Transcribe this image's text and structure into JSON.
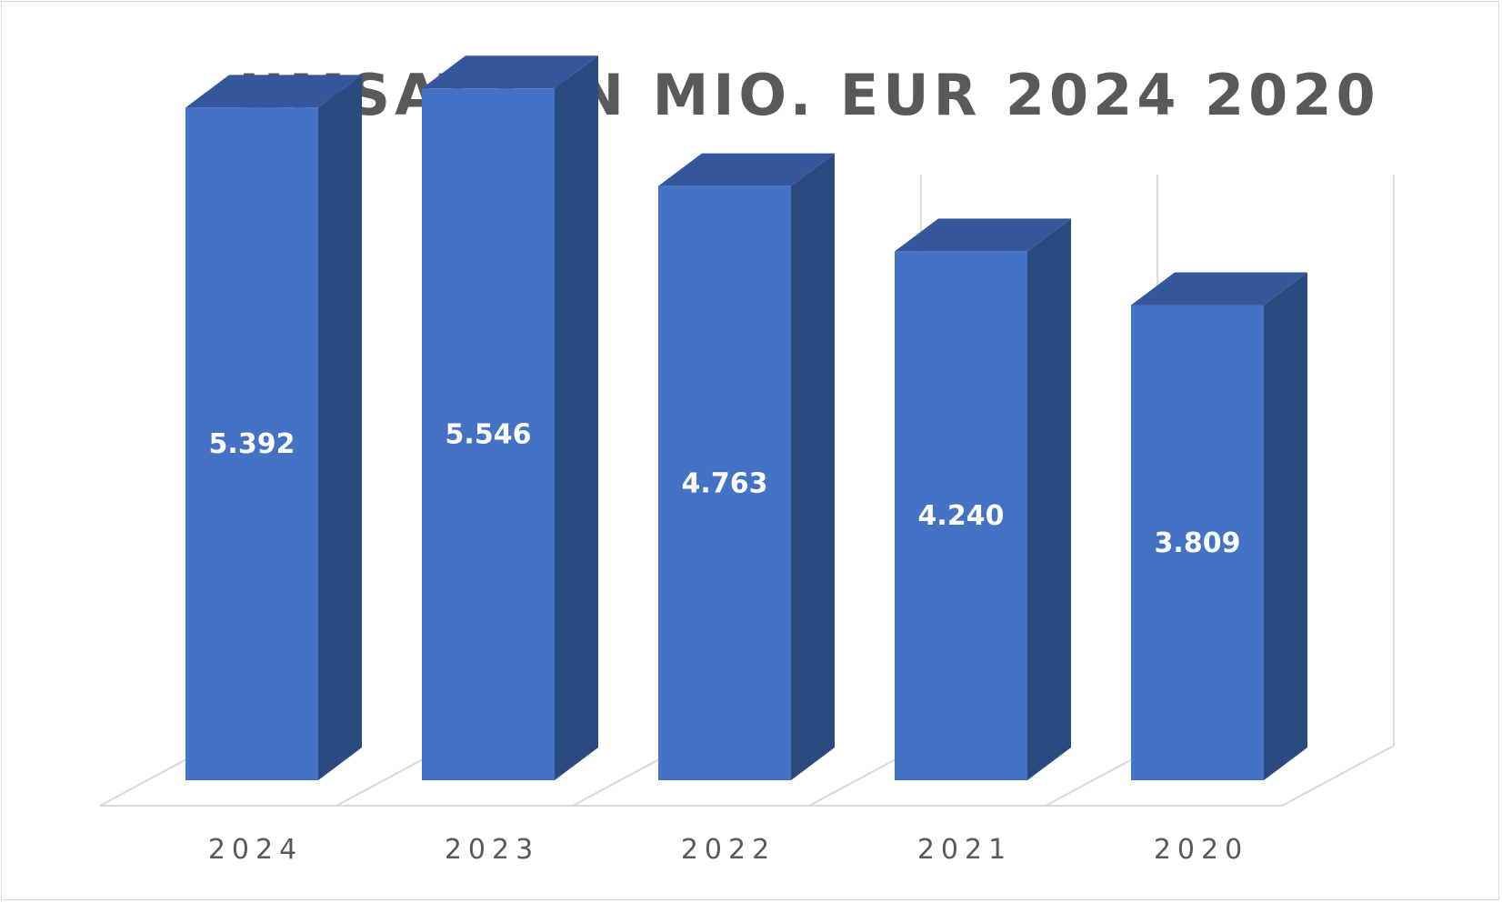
{
  "chart_data": {
    "type": "bar",
    "title": "UMSATZ IN MIO. EUR 2024 2020",
    "categories": [
      "2024",
      "2023",
      "2022",
      "2021",
      "2020"
    ],
    "values": [
      5392,
      5546,
      4763,
      4240,
      3809
    ],
    "value_labels": [
      "5.392",
      "5.546",
      "4.763",
      "4.240",
      "3.809"
    ],
    "ylim": [
      0,
      6000
    ],
    "grid": true,
    "legend": "none",
    "three_d": true
  },
  "colors": {
    "bar_front": "#4472c4",
    "bar_side": "#2b4a80",
    "bar_top": "#34569a",
    "grid": "#d9d9d9",
    "text": "#595959"
  }
}
